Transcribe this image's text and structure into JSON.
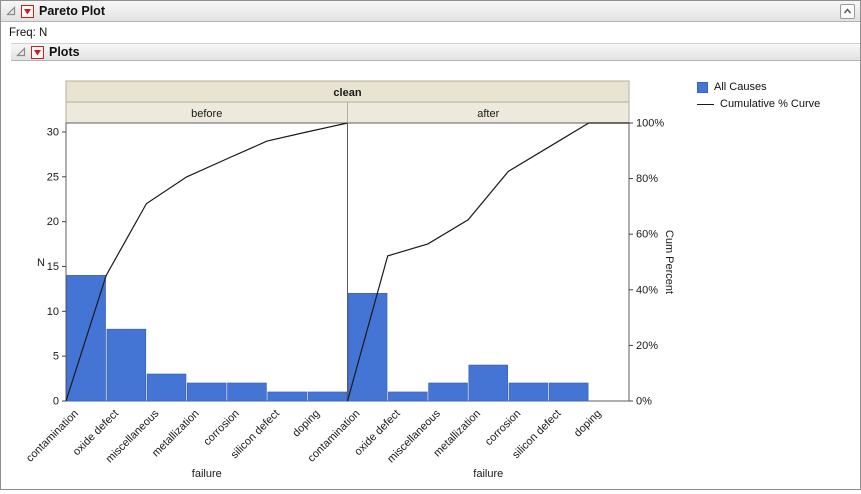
{
  "window": {
    "title": "Pareto Plot",
    "freq_label": "Freq: N",
    "plots_title": "Plots"
  },
  "chart_data": {
    "type": "bar",
    "subtype": "pareto-with-cumulative-line",
    "group_label": "clean",
    "categories": [
      "contamination",
      "oxide defect",
      "miscellaneous",
      "metallization",
      "corrosion",
      "silicon defect",
      "doping"
    ],
    "panels": [
      {
        "label": "before",
        "values": [
          14,
          8,
          3,
          2,
          2,
          1,
          1
        ],
        "cumulative_pct": [
          45.2,
          71.0,
          80.6,
          87.1,
          93.5,
          96.8,
          100
        ]
      },
      {
        "label": "after",
        "values": [
          12,
          1,
          2,
          4,
          2,
          2,
          0
        ],
        "cumulative_pct": [
          52.2,
          56.5,
          65.2,
          82.6,
          91.3,
          100,
          100
        ]
      }
    ],
    "xlabel": "failure",
    "ylabel": "N",
    "y2label": "Cum Percent",
    "yticks": [
      0,
      5,
      10,
      15,
      20,
      25,
      30
    ],
    "y2ticks": [
      "0%",
      "20%",
      "40%",
      "60%",
      "80%",
      "100%"
    ],
    "ylim": [
      0,
      31
    ],
    "legend": [
      {
        "label": "All Causes",
        "type": "bar"
      },
      {
        "label": "Cumulative % Curve",
        "type": "line"
      }
    ],
    "bar_color": "#4575d4",
    "bar_border_color": "#3a63bb",
    "line_color": "#1a1a1a",
    "band_color": "#e8e4d1",
    "panel_band_color": "#edeadd"
  }
}
